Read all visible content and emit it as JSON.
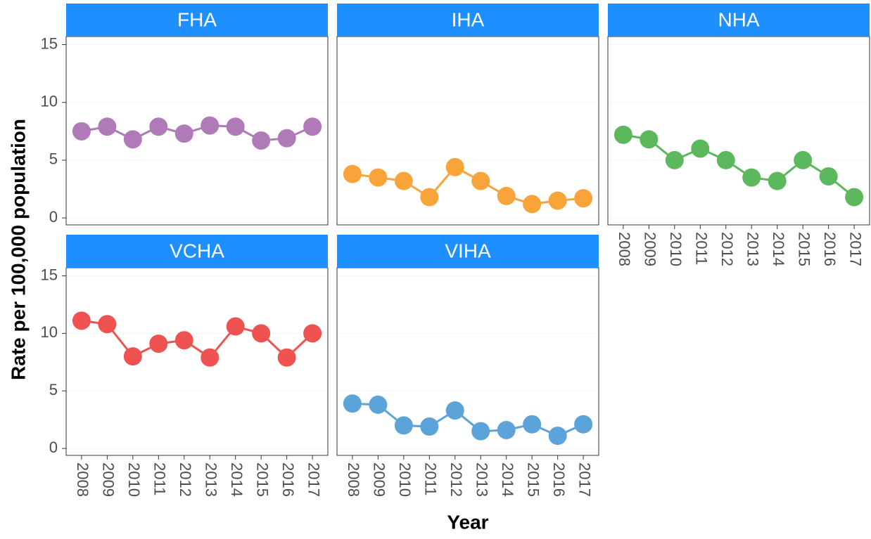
{
  "x_label": "Year",
  "y_label": "Rate per 100,000 population",
  "chart_data": [
    {
      "type": "line",
      "title": "FHA",
      "categories": [
        "2008",
        "2009",
        "2010",
        "2011",
        "2012",
        "2013",
        "2014",
        "2015",
        "2016",
        "2017"
      ],
      "values": [
        7.5,
        7.9,
        6.8,
        7.9,
        7.3,
        8.0,
        7.9,
        6.7,
        6.9,
        7.9
      ],
      "color": "#b07ab8",
      "ylim": [
        -0.6,
        15.7
      ],
      "yticks": [
        0,
        5,
        10,
        15
      ],
      "grid": true
    },
    {
      "type": "line",
      "title": "IHA",
      "categories": [
        "2008",
        "2009",
        "2010",
        "2011",
        "2012",
        "2013",
        "2014",
        "2015",
        "2016",
        "2017"
      ],
      "values": [
        3.8,
        3.5,
        3.2,
        1.8,
        4.4,
        3.2,
        1.9,
        1.2,
        1.5,
        1.7
      ],
      "color": "#f8a43a",
      "ylim": [
        -0.6,
        15.7
      ],
      "yticks": [
        0,
        5,
        10,
        15
      ],
      "grid": true
    },
    {
      "type": "line",
      "title": "NHA",
      "categories": [
        "2008",
        "2009",
        "2010",
        "2011",
        "2012",
        "2013",
        "2014",
        "2015",
        "2016",
        "2017"
      ],
      "values": [
        7.2,
        6.8,
        5.0,
        6.0,
        5.0,
        3.5,
        3.2,
        5.0,
        3.6,
        1.8
      ],
      "color": "#5cb85c",
      "ylim": [
        -0.6,
        15.7
      ],
      "yticks": [
        0,
        5,
        10,
        15
      ],
      "grid": true
    },
    {
      "type": "line",
      "title": "VCHA",
      "categories": [
        "2008",
        "2009",
        "2010",
        "2011",
        "2012",
        "2013",
        "2014",
        "2015",
        "2016",
        "2017"
      ],
      "values": [
        11.1,
        10.8,
        8.0,
        9.1,
        9.4,
        7.9,
        10.6,
        10.0,
        7.9,
        10.0
      ],
      "color": "#ee5351",
      "ylim": [
        -0.6,
        15.7
      ],
      "yticks": [
        0,
        5,
        10,
        15
      ],
      "grid": true
    },
    {
      "type": "line",
      "title": "VIHA",
      "categories": [
        "2008",
        "2009",
        "2010",
        "2011",
        "2012",
        "2013",
        "2014",
        "2015",
        "2016",
        "2017"
      ],
      "values": [
        3.9,
        3.8,
        2.0,
        1.9,
        3.3,
        1.5,
        1.6,
        2.1,
        1.1,
        2.1
      ],
      "color": "#5ba3d9",
      "ylim": [
        -0.6,
        15.7
      ],
      "yticks": [
        0,
        5,
        10,
        15
      ],
      "grid": true
    }
  ]
}
